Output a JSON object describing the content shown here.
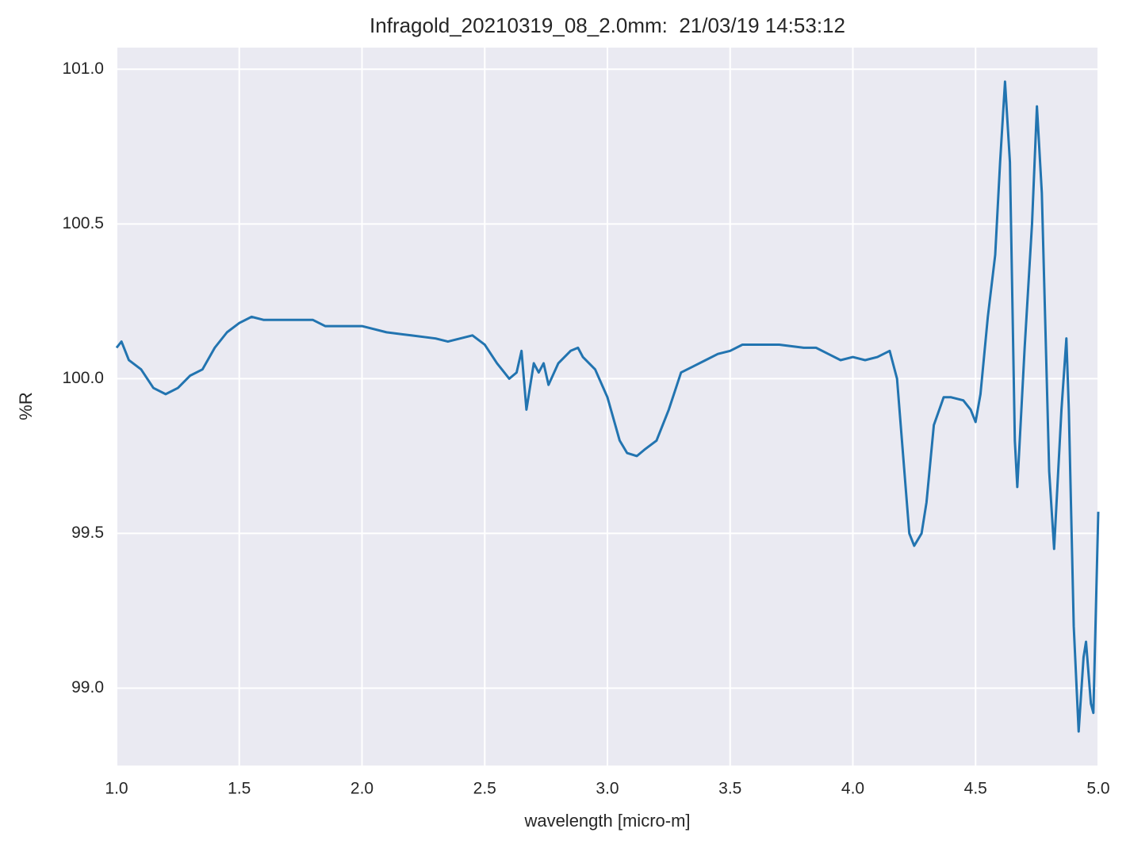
{
  "chart_data": {
    "type": "line",
    "title": "Infragold_20210319_08_2.0mm:  21/03/19 14:53:12",
    "xlabel": "wavelength [micro-m]",
    "ylabel": "%R",
    "x": [
      1.0,
      1.02,
      1.05,
      1.1,
      1.15,
      1.2,
      1.25,
      1.3,
      1.35,
      1.4,
      1.45,
      1.5,
      1.55,
      1.6,
      1.7,
      1.8,
      1.85,
      1.9,
      1.95,
      2.0,
      2.1,
      2.2,
      2.3,
      2.35,
      2.4,
      2.45,
      2.5,
      2.55,
      2.6,
      2.63,
      2.65,
      2.67,
      2.7,
      2.72,
      2.74,
      2.76,
      2.8,
      2.85,
      2.88,
      2.9,
      2.95,
      3.0,
      3.05,
      3.08,
      3.12,
      3.15,
      3.2,
      3.25,
      3.3,
      3.35,
      3.4,
      3.45,
      3.5,
      3.55,
      3.6,
      3.7,
      3.8,
      3.85,
      3.9,
      3.95,
      4.0,
      4.05,
      4.1,
      4.15,
      4.18,
      4.2,
      4.23,
      4.25,
      4.28,
      4.3,
      4.33,
      4.37,
      4.4,
      4.45,
      4.48,
      4.5,
      4.52,
      4.55,
      4.58,
      4.6,
      4.62,
      4.64,
      4.66,
      4.67,
      4.7,
      4.73,
      4.75,
      4.77,
      4.8,
      4.82,
      4.85,
      4.87,
      4.88,
      4.9,
      4.92,
      4.94,
      4.95,
      4.97,
      4.98,
      5.0
    ],
    "values": [
      100.1,
      100.12,
      100.06,
      100.03,
      99.97,
      99.95,
      99.97,
      100.01,
      100.03,
      100.1,
      100.15,
      100.18,
      100.2,
      100.19,
      100.19,
      100.19,
      100.17,
      100.17,
      100.17,
      100.17,
      100.15,
      100.14,
      100.13,
      100.12,
      100.13,
      100.14,
      100.11,
      100.05,
      100.0,
      100.02,
      100.09,
      99.9,
      100.05,
      100.02,
      100.05,
      99.98,
      100.05,
      100.09,
      100.1,
      100.07,
      100.03,
      99.94,
      99.8,
      99.76,
      99.75,
      99.77,
      99.8,
      99.9,
      100.02,
      100.04,
      100.06,
      100.08,
      100.09,
      100.11,
      100.11,
      100.11,
      100.1,
      100.1,
      100.08,
      100.06,
      100.07,
      100.06,
      100.07,
      100.09,
      100.0,
      99.8,
      99.5,
      99.46,
      99.5,
      99.6,
      99.85,
      99.94,
      99.94,
      99.93,
      99.9,
      99.86,
      99.95,
      100.2,
      100.4,
      100.7,
      100.96,
      100.7,
      99.8,
      99.65,
      100.1,
      100.5,
      100.88,
      100.6,
      99.7,
      99.45,
      99.9,
      100.13,
      99.9,
      99.2,
      98.86,
      99.1,
      99.15,
      98.95,
      98.92,
      99.57
    ],
    "color": "#2274b0",
    "xlim": [
      1.0,
      5.0
    ],
    "ylim": [
      98.75,
      101.07
    ],
    "xticks": [
      {
        "value": 1.0,
        "label": "1.0"
      },
      1.5,
      {
        "value": 2.0,
        "label": "2.0"
      },
      2.5,
      {
        "value": 3.0,
        "label": "3.0"
      },
      3.5,
      {
        "value": 4.0,
        "label": "4.0"
      },
      4.5,
      {
        "value": 5.0,
        "label": "5.0"
      }
    ],
    "yticks": [
      {
        "value": 99.0,
        "label": "99.0"
      },
      99.5,
      {
        "value": 100.0,
        "label": "100.0"
      },
      100.5,
      {
        "value": 101.0,
        "label": "101.0"
      }
    ],
    "grid": true
  }
}
